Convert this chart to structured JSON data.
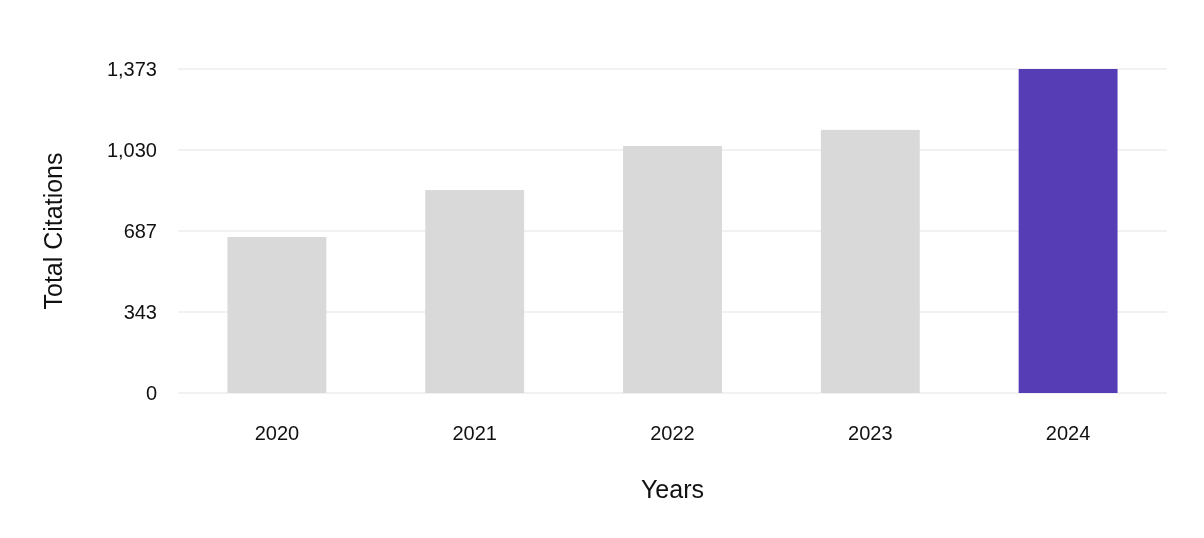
{
  "chart_data": {
    "type": "bar",
    "xlabel": "Years",
    "ylabel": "Total Citations",
    "categories": [
      "2020",
      "2021",
      "2022",
      "2023",
      "2024"
    ],
    "values": [
      661,
      860,
      1047,
      1115,
      1373
    ],
    "colors": [
      "#d9d9d9",
      "#d9d9d9",
      "#d9d9d9",
      "#d9d9d9",
      "#563db6"
    ],
    "ylim": [
      0,
      1373
    ],
    "yticks": [
      0,
      343,
      687,
      {
        "value": 1030,
        "label": "1,030"
      },
      {
        "value": 1373,
        "label": "1,373"
      }
    ],
    "grid": "y"
  }
}
